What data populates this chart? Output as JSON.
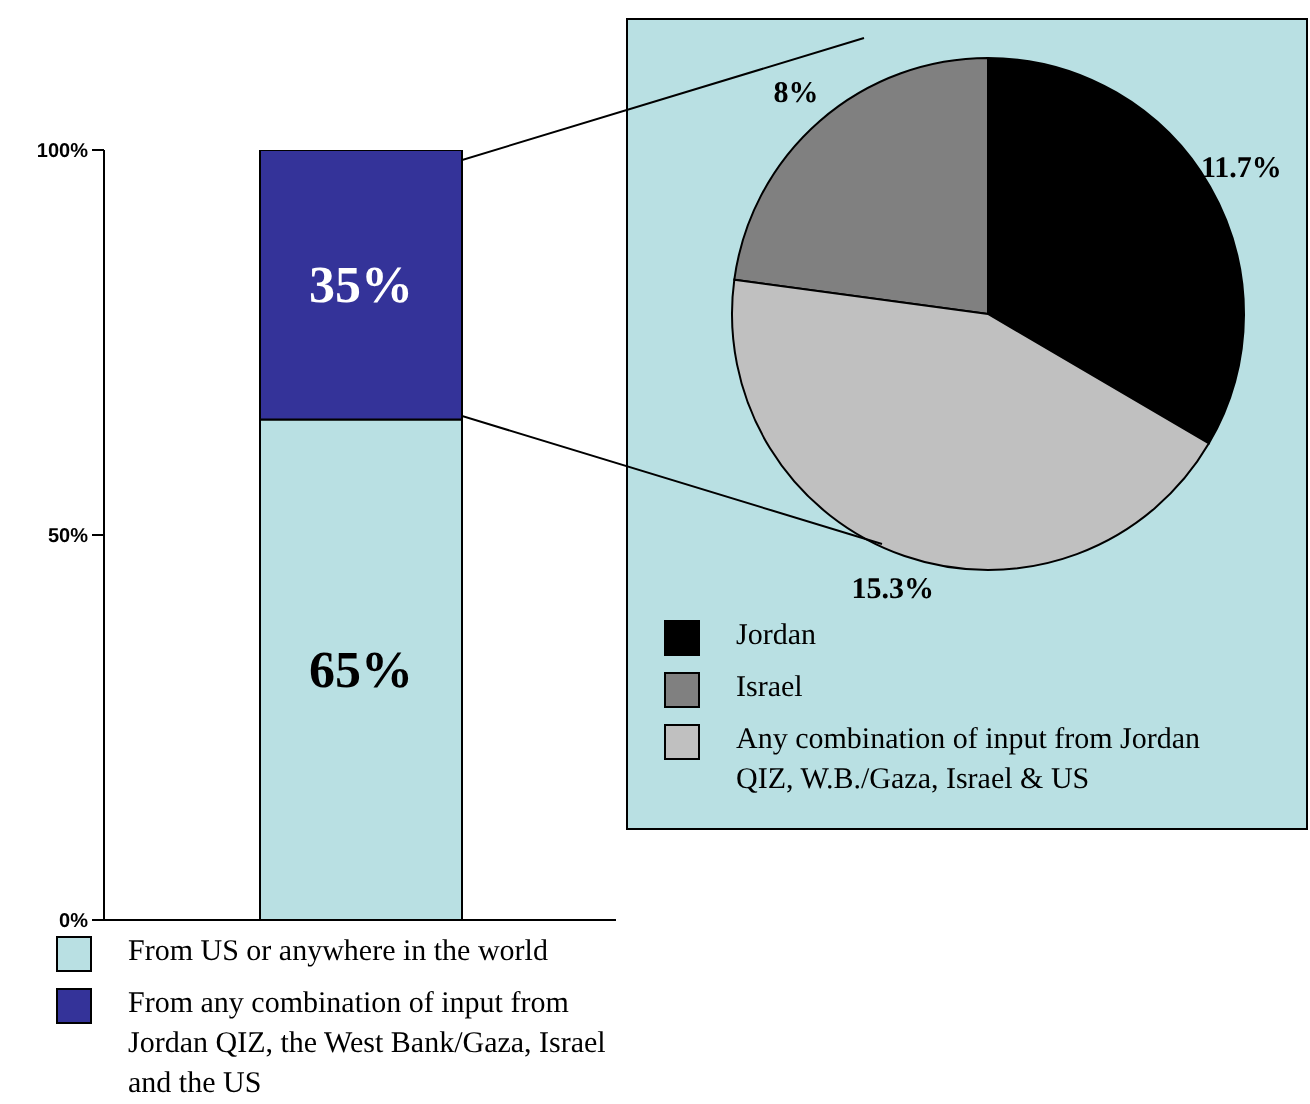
{
  "chart_data": [
    {
      "type": "bar",
      "stacked": true,
      "categories": [
        null
      ],
      "series": [
        {
          "name": "From US or anywhere in the world",
          "color": "#b9e0e3",
          "values": [
            65
          ],
          "value_labels": [
            "65%"
          ]
        },
        {
          "name": "From any combination of input from Jordan QIZ, the West Bank/Gaza, Israel and the US",
          "color": "#343399",
          "values": [
            35
          ],
          "value_labels": [
            "35%"
          ]
        }
      ],
      "ylim": [
        0,
        100
      ],
      "yticks": [
        {
          "value": 0,
          "label": "0%"
        },
        {
          "value": 50,
          "label": "50%"
        },
        {
          "value": 100,
          "label": "100%"
        }
      ],
      "grid": false,
      "legend": "bottom"
    },
    {
      "type": "pie",
      "categories": [
        "Jordan",
        "Israel",
        "Any combination of input from Jordan QIZ, W.B./Gaza, Israel & US"
      ],
      "values": [
        11.7,
        8,
        15.3
      ],
      "value_labels": [
        "11.7%",
        "8%",
        "15.3%"
      ],
      "colors": [
        "#000000",
        "#808080",
        "#c0c0c0"
      ],
      "legend": "bottom"
    }
  ]
}
